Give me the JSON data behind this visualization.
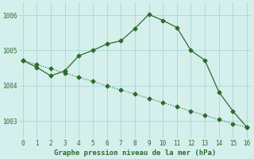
{
  "line1_x": [
    0,
    1,
    2,
    3,
    4,
    5,
    6,
    7,
    8,
    9,
    10,
    11,
    12,
    13,
    14,
    15,
    16
  ],
  "line1_y": [
    1004.72,
    1004.52,
    1004.28,
    1004.42,
    1004.85,
    1005.0,
    1005.18,
    1005.27,
    1005.62,
    1006.02,
    1005.85,
    1005.65,
    1005.0,
    1004.72,
    1003.82,
    1003.28,
    1002.82
  ],
  "line2_x": [
    0,
    1,
    2,
    3,
    4,
    5,
    6,
    7,
    8,
    9,
    10,
    11,
    12,
    13,
    14,
    15,
    16
  ],
  "line2_y": [
    1004.72,
    1004.6,
    1004.48,
    1004.36,
    1004.24,
    1004.12,
    1004.0,
    1003.88,
    1003.76,
    1003.64,
    1003.52,
    1003.4,
    1003.28,
    1003.16,
    1003.04,
    1002.92,
    1002.82
  ],
  "line_color": "#2d6b2d",
  "marker": "D",
  "marker_size": 2.5,
  "xlabel": "Graphe pression niveau de la mer (hPa)",
  "xlim": [
    -0.3,
    16.3
  ],
  "ylim": [
    1002.5,
    1006.35
  ],
  "yticks": [
    1003,
    1004,
    1005,
    1006
  ],
  "xticks": [
    0,
    1,
    2,
    3,
    4,
    5,
    6,
    7,
    8,
    9,
    10,
    11,
    12,
    13,
    14,
    15,
    16
  ],
  "bg_color": "#d4efec",
  "grid_color": "#a8d8d4"
}
